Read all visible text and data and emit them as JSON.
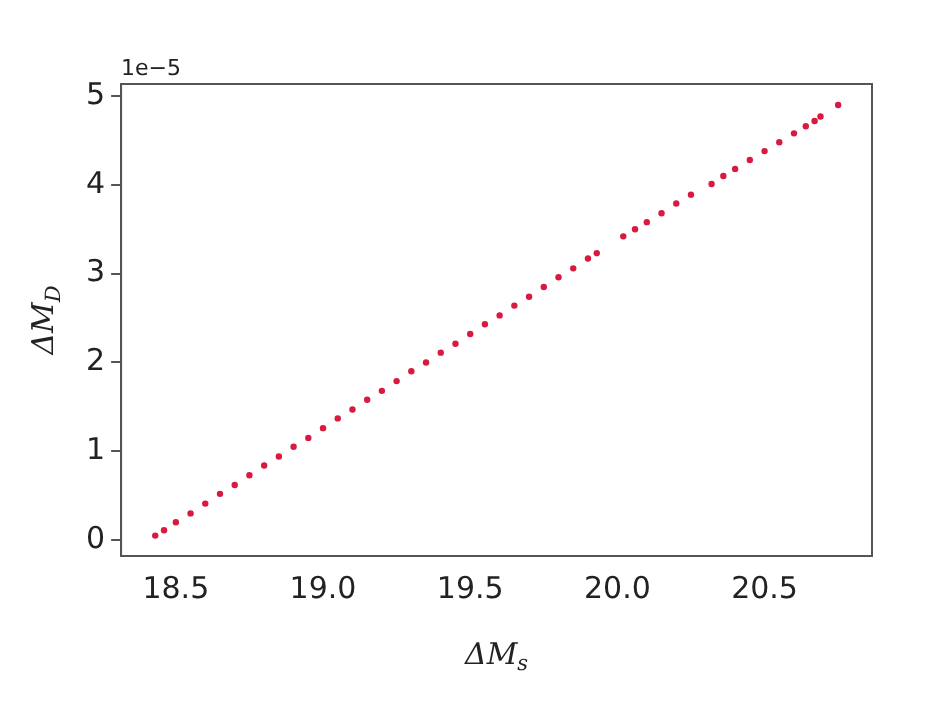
{
  "chart_data": {
    "type": "scatter",
    "xlabel": "ΔM$_{s}$",
    "ylabel": "ΔM$_{D}$",
    "annotations": [
      "1e−5"
    ],
    "x": [
      18.43,
      18.46,
      18.5,
      18.55,
      18.6,
      18.65,
      18.7,
      18.75,
      18.8,
      18.85,
      18.9,
      18.95,
      19.0,
      19.05,
      19.1,
      19.15,
      19.2,
      19.25,
      19.3,
      19.35,
      19.4,
      19.45,
      19.5,
      19.55,
      19.6,
      19.65,
      19.7,
      19.75,
      19.8,
      19.85,
      19.9,
      19.93,
      20.02,
      20.06,
      20.1,
      20.15,
      20.2,
      20.25,
      20.32,
      20.36,
      20.4,
      20.45,
      20.5,
      20.55,
      20.6,
      20.64,
      20.67,
      20.69,
      20.75
    ],
    "series": [
      {
        "color": "#d91a3f",
        "values": [
          0.05,
          0.11,
          0.2,
          0.3,
          0.41,
          0.52,
          0.62,
          0.73,
          0.84,
          0.94,
          1.05,
          1.15,
          1.26,
          1.37,
          1.47,
          1.58,
          1.68,
          1.79,
          1.9,
          2.0,
          2.11,
          2.21,
          2.32,
          2.43,
          2.53,
          2.64,
          2.74,
          2.85,
          2.96,
          3.06,
          3.17,
          3.23,
          3.42,
          3.5,
          3.58,
          3.68,
          3.79,
          3.89,
          4.01,
          4.1,
          4.18,
          4.28,
          4.38,
          4.48,
          4.58,
          4.66,
          4.72,
          4.77,
          4.9
        ]
      }
    ],
    "xlim": [
      18.314,
      20.865
    ],
    "ylim": [
      -0.18,
      5.136
    ],
    "xticks": [
      18.5,
      {
        "value": 19,
        "label": "19.0"
      },
      19.5,
      {
        "value": 20,
        "label": "20.0"
      },
      20.5
    ],
    "yticks": [
      0,
      1,
      2,
      3,
      4,
      5
    ],
    "marker": "circle",
    "grid": false,
    "legend": false
  }
}
